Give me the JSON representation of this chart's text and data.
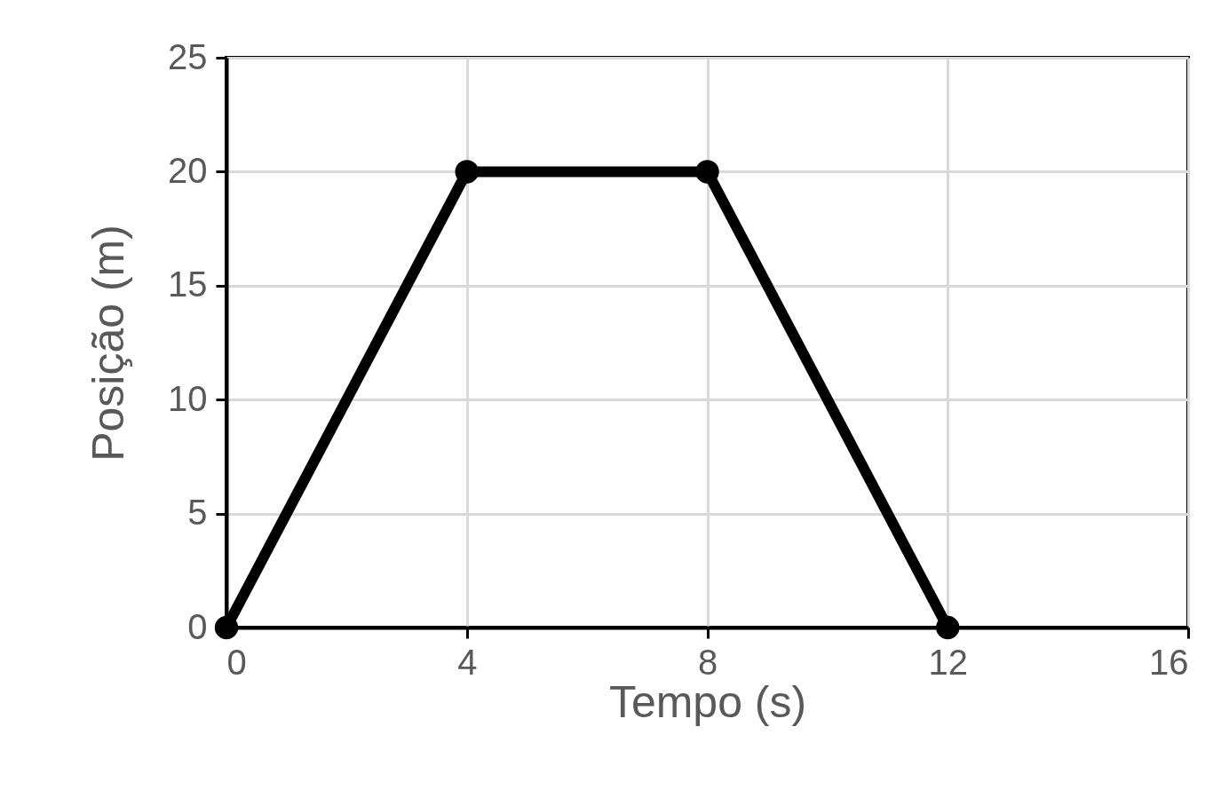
{
  "chart_data": {
    "type": "line",
    "xlabel": "Tempo (s)",
    "ylabel": "Posição (m)",
    "x": [
      0,
      4,
      8,
      12
    ],
    "series": [
      {
        "color": "#000000",
        "values": [
          0,
          20,
          20,
          0
        ]
      }
    ],
    "xlim": [
      0,
      16
    ],
    "xticks": [
      0,
      4,
      8,
      12,
      16
    ],
    "ylim": [
      0,
      25
    ],
    "yticks": [
      0,
      5,
      10,
      15,
      20,
      25
    ],
    "grid": true,
    "marker": "circle",
    "line_style": "solid"
  }
}
